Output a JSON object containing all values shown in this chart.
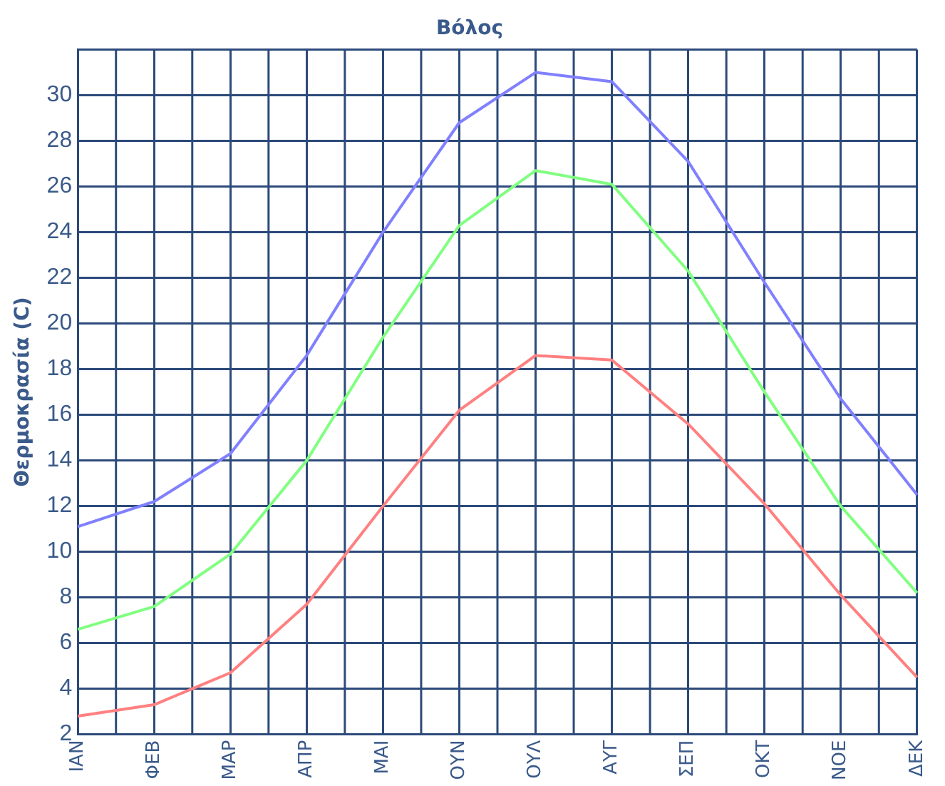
{
  "chart_data": {
    "type": "line",
    "title": "Βόλος",
    "ylabel": "Θερμοκρασία (C)",
    "categories": [
      "ΙΑΝ",
      "ΦΕΒ",
      "ΜΑΡ",
      "ΑΠΡ",
      "ΜΑΙ",
      "ΟΥΝ",
      "ΟΥΛ",
      "ΑΥΓ",
      "ΣΕΠ",
      "ΟΚΤ",
      "ΝΟΕ",
      "ΔΕΚ"
    ],
    "series": [
      {
        "color": "#8080ff",
        "values": [
          11.1,
          12.2,
          14.3,
          18.6,
          24.0,
          28.8,
          31.0,
          30.6,
          27.1,
          21.8,
          16.7,
          12.5
        ]
      },
      {
        "color": "#80ff80",
        "values": [
          6.6,
          7.6,
          9.9,
          14.0,
          19.4,
          24.3,
          26.7,
          26.1,
          22.3,
          17.0,
          12.0,
          8.2
        ]
      },
      {
        "color": "#ff8080",
        "values": [
          2.8,
          3.3,
          4.7,
          7.7,
          12.0,
          16.2,
          18.6,
          18.4,
          15.6,
          12.1,
          8.1,
          4.5
        ]
      }
    ],
    "ylim": [
      2,
      32
    ],
    "yticks": [
      2,
      4,
      6,
      8,
      10,
      12,
      14,
      16,
      18,
      20,
      22,
      24,
      26,
      28,
      30,
      {
        "value": 32,
        "label": null
      }
    ],
    "grid": true,
    "legend": false,
    "marker": "none",
    "line_style": "solid"
  }
}
